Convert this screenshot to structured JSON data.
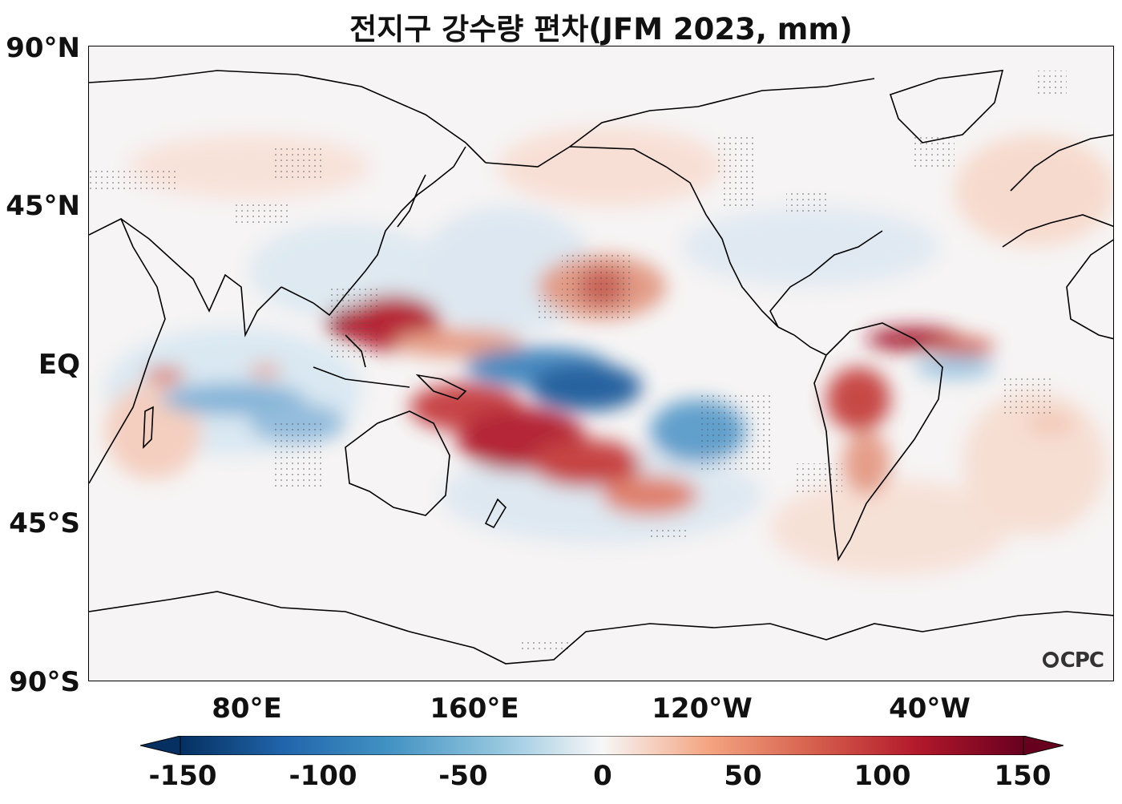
{
  "title": "전지구 강수량 편차(JFM 2023, mm)",
  "lat_labels": [
    "90°N",
    "45°N",
    "EQ",
    "45°S",
    "90°S"
  ],
  "lon_labels": [
    "80°E",
    "160°E",
    "120°W",
    "40°W"
  ],
  "colorbar": {
    "ticks": [
      "-150",
      "-100",
      "-50",
      "0",
      "50",
      "100",
      "150"
    ],
    "min": -150,
    "max": 150,
    "extend": "both",
    "colormap": "RdBu_r",
    "colors": [
      "#053061",
      "#2166ac",
      "#4393c3",
      "#92c5de",
      "#f7f7f7",
      "#f4a582",
      "#d6604d",
      "#b2182b",
      "#67001f"
    ]
  },
  "watermark": "CPC",
  "map": {
    "projection": "equirectangular",
    "central_longitude": 180,
    "longitude_range": [
      20,
      380
    ],
    "latitude_range": [
      -90,
      90
    ],
    "stippling": "significant areas",
    "coastlines": true
  }
}
